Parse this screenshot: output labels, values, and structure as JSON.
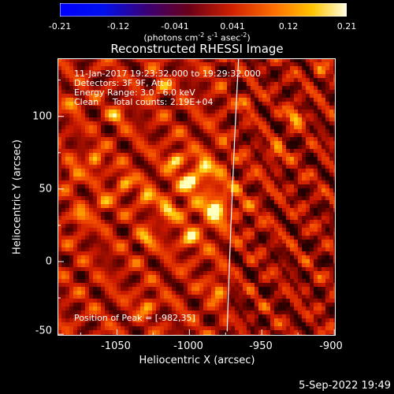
{
  "colorbar": {
    "ticks": [
      "-0.21",
      "-0.12",
      "-0.041",
      "0.041",
      "0.12",
      "0.21"
    ],
    "units_main": "(photons cm",
    "units_sup1": "-2",
    "units_mid1": " s",
    "units_sup2": "-1",
    "units_mid2": " asec",
    "units_sup3": "-2",
    "units_end": ")"
  },
  "title": "Reconstructed RHESSI Image",
  "annotations": {
    "line1": "11-Jan-2017 19:23:32.000 to 19:29:32.000",
    "line2": "Detectors: 3F 9F, Att 0",
    "line3": "Energy Range: 3.0 - 6.0 keV",
    "line4": "Clean     Total counts: 2.19E+04",
    "peak": "Position of Peak = [-982,35]"
  },
  "axes": {
    "xlabel": "Heliocentric X (arcsec)",
    "ylabel": "Heliocentric Y (arcsec)",
    "xticks": [
      "-1050",
      "-1000",
      "-950",
      "-900"
    ],
    "yticks": [
      "100",
      "50",
      "0",
      "-50"
    ]
  },
  "timestamp": "5-Sep-2022 19:49",
  "chart_data": {
    "type": "heatmap",
    "title": "Reconstructed RHESSI Image",
    "xlabel": "Heliocentric X (arcsec)",
    "ylabel": "Heliocentric Y (arcsec)",
    "xlim": [
      -1091,
      -899
    ],
    "ylim": [
      -51,
      140
    ],
    "color_range": [
      -0.21,
      0.21
    ],
    "colormap": "prism-red-yellow",
    "peak": [
      -982,
      35
    ],
    "limb_color": "#ffffff",
    "bright_spots": [
      {
        "x": -982,
        "y": 35,
        "value": 0.21
      },
      {
        "x": -1000,
        "y": 55,
        "value": 0.17
      },
      {
        "x": -927,
        "y": 100,
        "value": 0.17
      },
      {
        "x": -1065,
        "y": 70,
        "value": 0.15
      },
      {
        "x": -1075,
        "y": 30,
        "value": 0.13
      },
      {
        "x": -1045,
        "y": 55,
        "value": 0.14
      },
      {
        "x": -1030,
        "y": 45,
        "value": 0.14
      },
      {
        "x": -1010,
        "y": 70,
        "value": 0.14
      },
      {
        "x": -990,
        "y": 65,
        "value": 0.14
      },
      {
        "x": -1080,
        "y": 60,
        "value": 0.13
      },
      {
        "x": -1060,
        "y": 40,
        "value": 0.12
      },
      {
        "x": -1015,
        "y": 35,
        "value": 0.13
      },
      {
        "x": -1030,
        "y": 15,
        "value": 0.13
      },
      {
        "x": -1000,
        "y": 15,
        "value": 0.13
      },
      {
        "x": -980,
        "y": -20,
        "value": 0.14
      },
      {
        "x": -1030,
        "y": -30,
        "value": 0.12
      },
      {
        "x": -960,
        "y": 110,
        "value": 0.11
      },
      {
        "x": -940,
        "y": 75,
        "value": 0.11
      },
      {
        "x": -910,
        "y": 130,
        "value": 0.1
      },
      {
        "x": -1050,
        "y": 100,
        "value": 0.11
      },
      {
        "x": -1080,
        "y": 110,
        "value": 0.11
      },
      {
        "x": -1020,
        "y": 120,
        "value": 0.11
      }
    ]
  }
}
